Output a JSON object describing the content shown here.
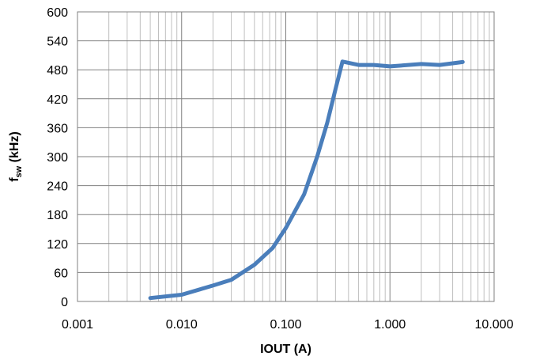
{
  "chart_data": {
    "type": "line",
    "x_scale": "log",
    "xlabel": "IOUT (A)",
    "ylabel": {
      "main": "f",
      "subscript": "sw",
      "suffix": " (kHz)"
    },
    "xlim": [
      0.001,
      10
    ],
    "ylim": [
      0,
      600
    ],
    "x_ticks": [
      {
        "value": 0.001,
        "label": "0.001"
      },
      {
        "value": 0.01,
        "label": "0.010"
      },
      {
        "value": 0.1,
        "label": "0.100"
      },
      {
        "value": 1,
        "label": "1.000"
      },
      {
        "value": 10,
        "label": "10.000"
      }
    ],
    "y_ticks": [
      {
        "value": 0,
        "label": "0"
      },
      {
        "value": 60,
        "label": "60"
      },
      {
        "value": 120,
        "label": "120"
      },
      {
        "value": 180,
        "label": "180"
      },
      {
        "value": 240,
        "label": "240"
      },
      {
        "value": 300,
        "label": "300"
      },
      {
        "value": 360,
        "label": "360"
      },
      {
        "value": 420,
        "label": "420"
      },
      {
        "value": 480,
        "label": "480"
      },
      {
        "value": 540,
        "label": "540"
      },
      {
        "value": 600,
        "label": "600"
      }
    ],
    "grid": true,
    "minor_grid": true,
    "legend": "none",
    "series": [
      {
        "color": "#4a7ebb",
        "x": [
          0.005,
          0.01,
          0.02,
          0.03,
          0.05,
          0.075,
          0.1,
          0.15,
          0.2,
          0.25,
          0.3,
          0.35,
          0.5,
          0.7,
          1.0,
          2.0,
          3.0,
          5.0
        ],
        "y": [
          7,
          14,
          33,
          45,
          76,
          111,
          152,
          222,
          300,
          370,
          440,
          497,
          490,
          490,
          487,
          492,
          490,
          496
        ]
      }
    ]
  }
}
